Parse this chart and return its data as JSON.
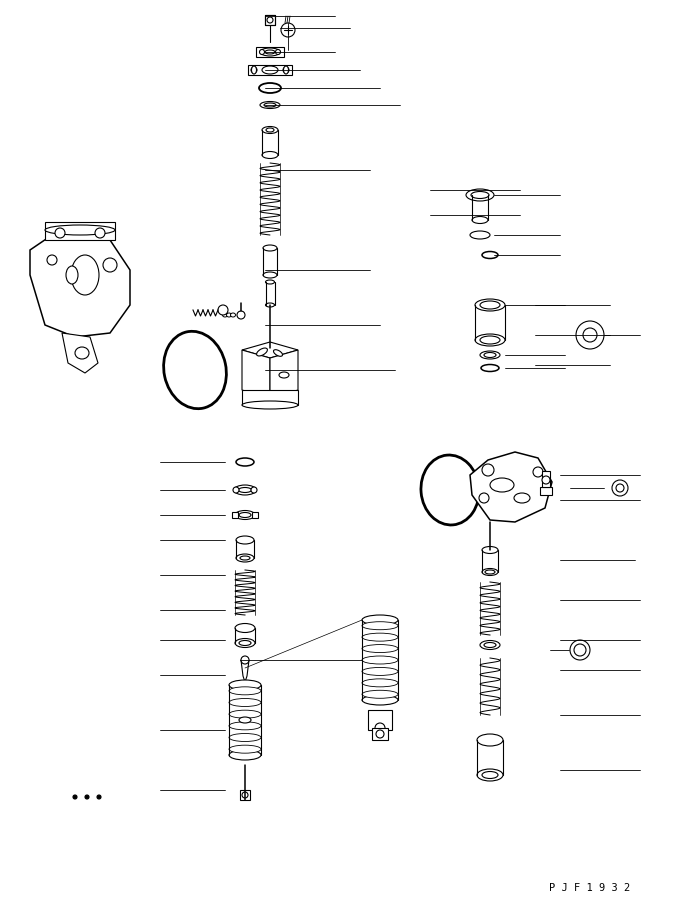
{
  "bg_color": "#ffffff",
  "line_color": "#000000",
  "lw": 0.8,
  "fig_width": 6.81,
  "fig_height": 9.01,
  "watermark": "P J F 1 9 3 2"
}
